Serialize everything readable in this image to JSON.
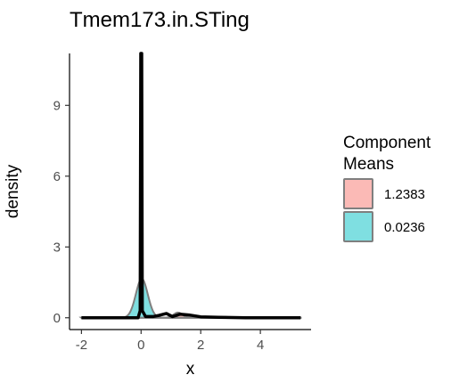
{
  "chart_data": {
    "type": "area",
    "title": "Tmem173.in.STing",
    "xlabel": "x",
    "ylabel": "density",
    "xlim": [
      -2.4,
      5.7
    ],
    "ylim": [
      -0.5,
      11.2
    ],
    "x_ticks": [
      -2,
      0,
      2,
      4
    ],
    "x_tick_labels": [
      "-2",
      "0",
      "2",
      "4"
    ],
    "y_ticks": [
      0,
      3,
      6,
      9
    ],
    "y_tick_labels": [
      "0",
      "3",
      "6",
      "9"
    ],
    "grid": false,
    "legend": {
      "position": "right",
      "title_lines": [
        "Component",
        "Means"
      ],
      "entries": [
        {
          "label": "1.2383",
          "fill": "#F8766D",
          "stroke": "#F8766D"
        },
        {
          "label": "0.0236",
          "fill": "#00BFC4",
          "stroke": "#00BFC4"
        }
      ]
    },
    "series": [
      {
        "name": "1.2383",
        "kind": "normal-component",
        "mean": 1.2383,
        "sd": 0.15,
        "peak": 0.22,
        "fill": "#F8766D",
        "fill_opacity": 0.45,
        "stroke": "#F8766D"
      },
      {
        "name": "0.0236",
        "kind": "normal-component",
        "mean": 0.0236,
        "sd": 0.2,
        "peak": 1.65,
        "fill": "#00BFC4",
        "fill_opacity": 0.5,
        "stroke": "#00BFC4"
      }
    ],
    "overall_density": {
      "range": [
        -2,
        5.35
      ],
      "points": [
        {
          "x": -2.0,
          "y": 0
        },
        {
          "x": -0.1,
          "y": 0
        },
        {
          "x": -0.03,
          "y": 0.3
        },
        {
          "x": -0.01,
          "y": 11.2
        },
        {
          "x": 0.02,
          "y": 11.2
        },
        {
          "x": 0.04,
          "y": 0.3
        },
        {
          "x": 0.15,
          "y": 0.05
        },
        {
          "x": 0.4,
          "y": 0.05
        },
        {
          "x": 0.6,
          "y": 0.1
        },
        {
          "x": 0.85,
          "y": 0.18
        },
        {
          "x": 1.05,
          "y": 0.05
        },
        {
          "x": 1.3,
          "y": 0.15
        },
        {
          "x": 1.6,
          "y": 0.12
        },
        {
          "x": 2.0,
          "y": 0.04
        },
        {
          "x": 2.6,
          "y": 0.02
        },
        {
          "x": 3.5,
          "y": 0.0
        },
        {
          "x": 5.35,
          "y": 0
        }
      ]
    }
  }
}
